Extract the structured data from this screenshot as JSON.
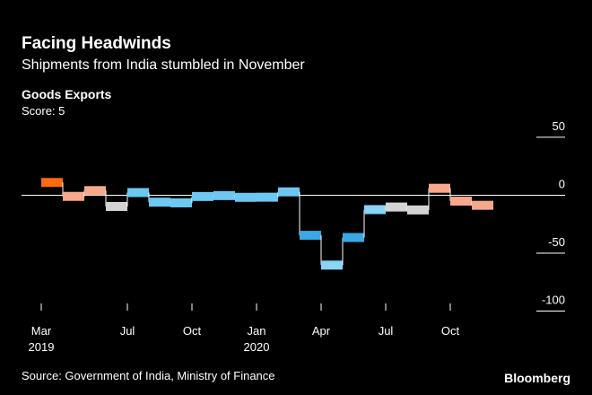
{
  "chart_data": {
    "type": "step",
    "title": "Facing Headwinds",
    "subtitle": "Shipments from India stumbled in November",
    "score_label": "Score: 5",
    "source": "Source: Government of India, Ministry of Finance",
    "brand": "Bloomberg",
    "categories": [
      "Mar",
      null,
      null,
      null,
      "Jul",
      null,
      null,
      "Oct",
      null,
      null,
      "Jan",
      null,
      null,
      "Apr",
      null,
      null,
      "Jul",
      null,
      null,
      "Oct",
      null
    ],
    "year_labels": [
      "2019",
      null,
      null,
      null,
      null,
      null,
      null,
      null,
      null,
      null,
      "2020",
      null,
      null,
      null,
      null,
      null,
      null,
      null,
      null,
      null,
      null
    ],
    "series": [
      {
        "name": "Goods Exports",
        "values": [
          11,
          -1,
          4,
          -9.7,
          2.3,
          -6,
          -6.6,
          -1.1,
          -0.3,
          -1.8,
          -1.7,
          2.9,
          -34.6,
          -60.3,
          -36.5,
          -12.4,
          -10.2,
          -12.7,
          6,
          -5.1,
          -8.7
        ],
        "colors": [
          "#ff6a13",
          "#f6a88a",
          "#f6a88a",
          "#d3d3d3",
          "#6cc8f2",
          "#6cc8f2",
          "#6cc8f2",
          "#6cc8f2",
          "#6cc8f2",
          "#6cc8f2",
          "#6cc8f2",
          "#6cc8f2",
          "#3aa8e4",
          "#8ad4f6",
          "#3aa8e4",
          "#8ad4f6",
          "#d3d3d3",
          "#d3d3d3",
          "#f6a88a",
          "#f6a88a",
          "#f6a88a"
        ]
      }
    ],
    "ylim": [
      -105,
      60
    ],
    "yticks": [
      50,
      0,
      -50,
      -100
    ]
  }
}
